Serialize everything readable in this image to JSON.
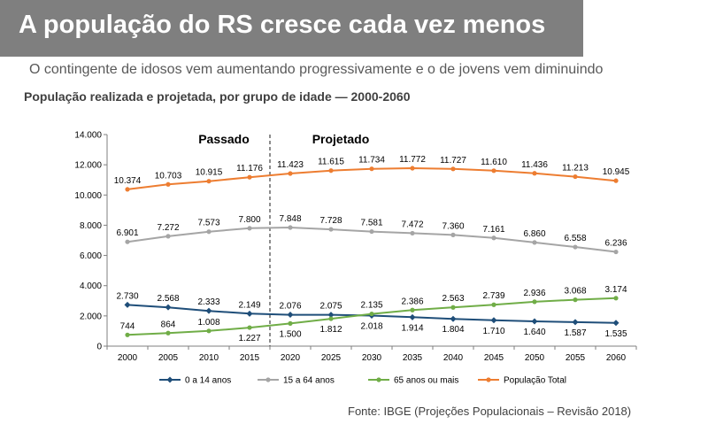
{
  "header": {
    "title": "A população do RS cresce cada vez menos",
    "subtitle": "O contingente de idosos vem aumentando progressivamente e o de jovens vem diminuindo"
  },
  "source": "Fonte: IBGE (Projeções Populacionais – Revisão 2018)",
  "colors": {
    "banner": "#7f7f7f",
    "total": "#ed7d31",
    "adults": "#a5a5a5",
    "youth": "#1f4e79",
    "elderly": "#70ad47"
  },
  "chart_data": {
    "type": "line",
    "title": "População realizada e projetada, por grupo de idade — 2000-2060",
    "xlabel": "",
    "ylabel": "",
    "categories": [
      "2000",
      "2005",
      "2010",
      "2015",
      "2020",
      "2025",
      "2030",
      "2035",
      "2040",
      "2045",
      "2050",
      "2055",
      "2060"
    ],
    "ylim": [
      0,
      14000
    ],
    "yticks": [
      0,
      2000,
      4000,
      6000,
      8000,
      10000,
      12000,
      14000
    ],
    "ytick_labels": [
      "0",
      "2.000",
      "4.000",
      "6.000",
      "8.000",
      "10.000",
      "12.000",
      "14.000"
    ],
    "grid": false,
    "legend_position": "bottom",
    "divider": {
      "after_category": "2015",
      "style": "dashed"
    },
    "annotations": [
      {
        "text": "Passado"
      },
      {
        "text": "Projetado"
      }
    ],
    "series": [
      {
        "name": "0 a 14 anos",
        "color": "#1f4e79",
        "marker": "diamond",
        "values": [
          2730,
          2568,
          2333,
          2149,
          2076,
          2075,
          2018,
          1914,
          1804,
          1710,
          1640,
          1587,
          1535
        ],
        "labels": [
          "2.730",
          "2.568",
          "2.333",
          "2.149",
          "2.076",
          "2.075",
          "2.018",
          "1.914",
          "1.804",
          "1.710",
          "1.640",
          "1.587",
          "1.535"
        ],
        "label_pos": [
          "above",
          "above",
          "above",
          "above",
          "above",
          "above",
          "below",
          "below",
          "below",
          "below",
          "below",
          "below",
          "below"
        ]
      },
      {
        "name": "15 a 64 anos",
        "color": "#a5a5a5",
        "marker": "circle",
        "values": [
          6901,
          7272,
          7573,
          7800,
          7848,
          7728,
          7581,
          7472,
          7360,
          7161,
          6860,
          6558,
          6236
        ],
        "labels": [
          "6.901",
          "7.272",
          "7.573",
          "7.800",
          "7.848",
          "7.728",
          "7.581",
          "7.472",
          "7.360",
          "7.161",
          "6.860",
          "6.558",
          "6.236"
        ],
        "label_pos": [
          "above",
          "above",
          "above",
          "above",
          "above",
          "above",
          "above",
          "above",
          "above",
          "above",
          "above",
          "above",
          "above"
        ]
      },
      {
        "name": "65 anos ou mais",
        "color": "#70ad47",
        "marker": "circle",
        "values": [
          744,
          864,
          1008,
          1227,
          1500,
          1812,
          2135,
          2386,
          2563,
          2739,
          2936,
          3068,
          3174
        ],
        "labels": [
          "744",
          "864",
          "1.008",
          "1.227",
          "1.500",
          "1.812",
          "2.135",
          "2.386",
          "2.563",
          "2.739",
          "2.936",
          "3.068",
          "3.174"
        ],
        "label_pos": [
          "above",
          "above",
          "above",
          "below",
          "below",
          "below",
          "above",
          "above",
          "above",
          "above",
          "above",
          "above",
          "above"
        ]
      },
      {
        "name": "População Total",
        "color": "#ed7d31",
        "marker": "circle",
        "values": [
          10374,
          10703,
          10915,
          11176,
          11423,
          11615,
          11734,
          11772,
          11727,
          11610,
          11436,
          11213,
          10945
        ],
        "labels": [
          "10.374",
          "10.703",
          "10.915",
          "11.176",
          "11.423",
          "11.615",
          "11.734",
          "11.772",
          "11.727",
          "11.610",
          "11.436",
          "11.213",
          "10.945"
        ],
        "label_pos": [
          "above",
          "above",
          "above",
          "above",
          "above",
          "above",
          "above",
          "above",
          "above",
          "above",
          "above",
          "above",
          "above"
        ]
      }
    ]
  }
}
